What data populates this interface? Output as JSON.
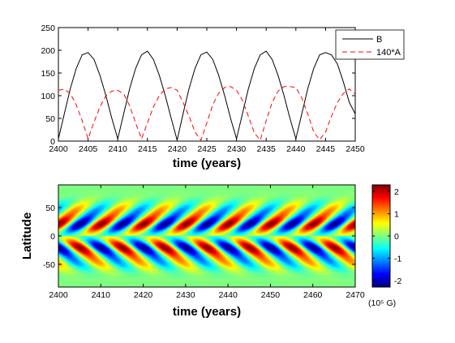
{
  "chart_data": [
    {
      "type": "line",
      "title": "",
      "xlabel": "time (years)",
      "ylabel": "",
      "xlim": [
        2400,
        2450
      ],
      "ylim": [
        0,
        250
      ],
      "xticks": [
        "2400",
        "2405",
        "2410",
        "2415",
        "2420",
        "2425",
        "2430",
        "2435",
        "2440",
        "2445",
        "2450"
      ],
      "yticks": [
        "0",
        "50",
        "100",
        "150",
        "200",
        "250"
      ],
      "legend_position": "top-right",
      "series": [
        {
          "name": "B",
          "color": "#000000",
          "style": "solid",
          "x": [
            2400,
            2401,
            2402,
            2403,
            2404,
            2405,
            2406,
            2407,
            2408,
            2409,
            2410,
            2411,
            2412,
            2413,
            2414,
            2415,
            2416,
            2417,
            2418,
            2419,
            2420,
            2421,
            2422,
            2423,
            2424,
            2425,
            2426,
            2427,
            2428,
            2429,
            2430,
            2431,
            2432,
            2433,
            2434,
            2435,
            2436,
            2437,
            2438,
            2439,
            2440,
            2441,
            2442,
            2443,
            2444,
            2445,
            2446,
            2447,
            2448,
            2449,
            2450
          ],
          "y": [
            5,
            60,
            115,
            160,
            190,
            195,
            180,
            145,
            100,
            50,
            5,
            60,
            115,
            160,
            190,
            198,
            180,
            145,
            100,
            50,
            2,
            60,
            115,
            160,
            190,
            196,
            180,
            145,
            100,
            50,
            5,
            60,
            115,
            160,
            190,
            198,
            180,
            145,
            100,
            50,
            5,
            60,
            115,
            160,
            190,
            195,
            190,
            170,
            130,
            85,
            60
          ]
        },
        {
          "name": "140*A",
          "color": "#ff0000",
          "style": "dashed",
          "x": [
            2400,
            2401,
            2402,
            2403,
            2404,
            2405,
            2406,
            2407,
            2408,
            2409,
            2410,
            2411,
            2412,
            2413,
            2414,
            2415,
            2416,
            2417,
            2418,
            2419,
            2420,
            2421,
            2422,
            2423,
            2424,
            2425,
            2426,
            2427,
            2428,
            2429,
            2430,
            2431,
            2432,
            2433,
            2434,
            2435,
            2436,
            2437,
            2438,
            2439,
            2440,
            2441,
            2442,
            2443,
            2444,
            2445,
            2446,
            2447,
            2448,
            2449,
            2450
          ],
          "y": [
            112,
            114,
            105,
            80,
            45,
            5,
            42,
            75,
            100,
            110,
            112,
            104,
            78,
            40,
            5,
            40,
            75,
            100,
            115,
            118,
            112,
            85,
            55,
            20,
            2,
            40,
            80,
            105,
            118,
            120,
            112,
            90,
            55,
            18,
            2,
            45,
            85,
            110,
            120,
            120,
            118,
            95,
            60,
            20,
            3,
            20,
            55,
            85,
            105,
            115,
            103
          ]
        }
      ]
    },
    {
      "type": "heatmap",
      "title": "",
      "xlabel": "time (years)",
      "ylabel": "Latitude",
      "xlim": [
        2400,
        2470
      ],
      "ylim": [
        -90,
        90
      ],
      "xticks": [
        "2400",
        "2410",
        "2420",
        "2430",
        "2440",
        "2450",
        "2460",
        "2470"
      ],
      "yticks": [
        "50",
        "0",
        "-50"
      ],
      "period_years": 10,
      "peak_latitude_deg": 20,
      "colorbar": {
        "vmin": -2.3,
        "vmax": 2.3,
        "ticks": [
          "2",
          "1",
          "0",
          "-1",
          "-2"
        ],
        "unit_label": "(10⁵ G)",
        "colormap": "jet"
      }
    }
  ]
}
